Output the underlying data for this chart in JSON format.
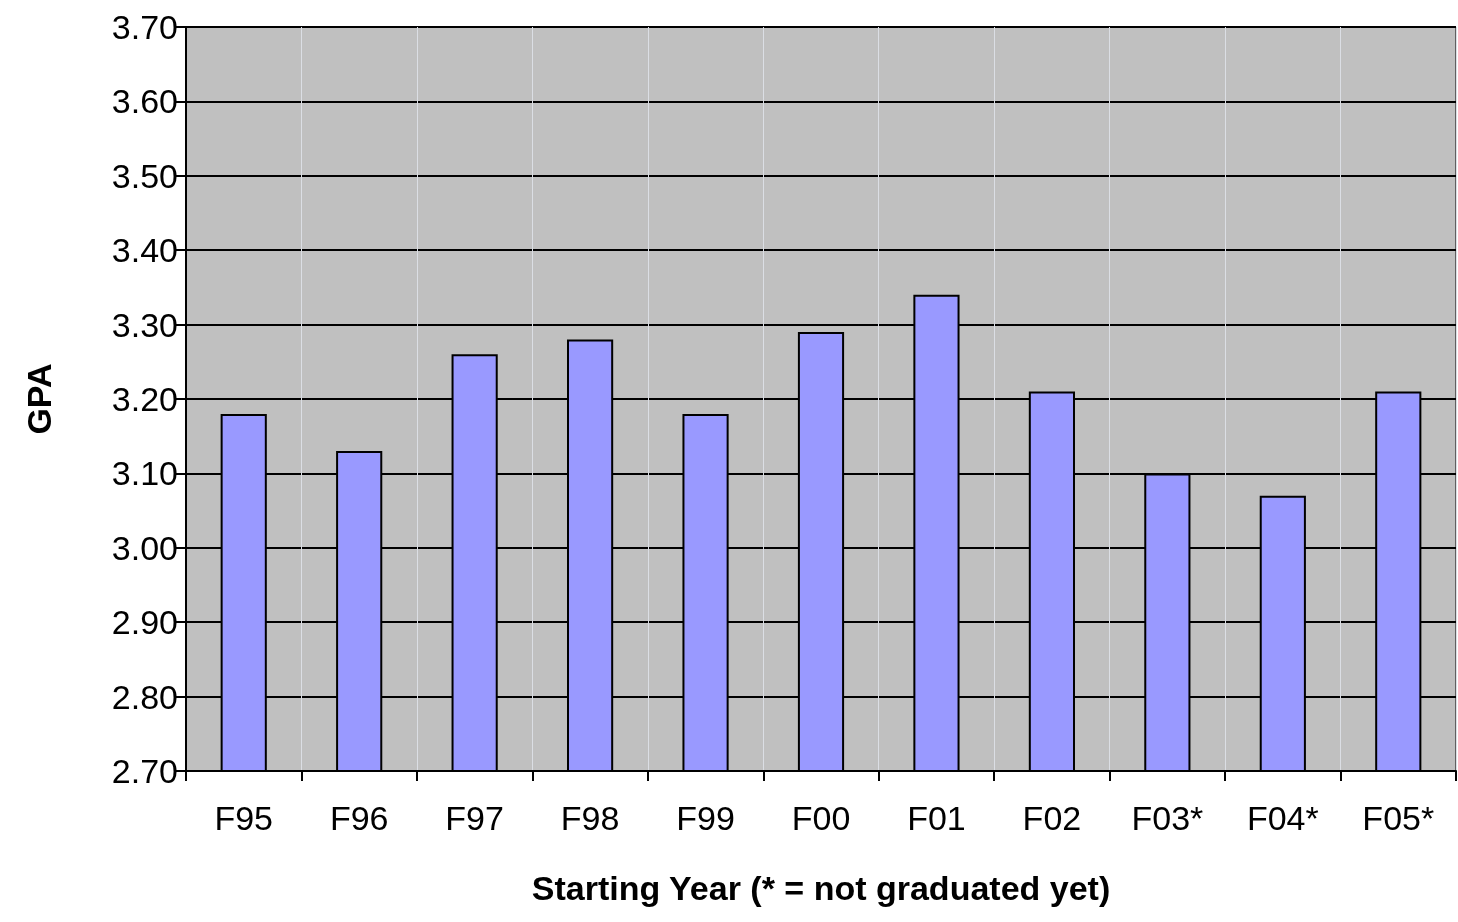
{
  "chart_data": {
    "type": "bar",
    "xlabel": "Starting Year (* = not graduated yet)",
    "ylabel": "GPA",
    "categories": [
      "F95",
      "F96",
      "F97",
      "F98",
      "F99",
      "F00",
      "F01",
      "F02",
      "F03*",
      "F04*",
      "F05*"
    ],
    "values": [
      3.18,
      3.13,
      3.26,
      3.28,
      3.18,
      3.29,
      3.34,
      3.21,
      3.1,
      3.07,
      3.21
    ],
    "color": "#9999ff",
    "ylim": [
      2.7,
      3.7
    ],
    "yticks": [
      {
        "value": 2.7,
        "label": "2.70"
      },
      {
        "value": 2.8,
        "label": "2.80"
      },
      {
        "value": 2.9,
        "label": "2.90"
      },
      {
        "value": 3.0,
        "label": "3.00"
      },
      {
        "value": 3.1,
        "label": "3.10"
      },
      {
        "value": 3.2,
        "label": "3.20"
      },
      {
        "value": 3.3,
        "label": "3.30"
      },
      {
        "value": 3.4,
        "label": "3.40"
      },
      {
        "value": 3.5,
        "label": "3.50"
      },
      {
        "value": 3.6,
        "label": "3.60"
      },
      {
        "value": 3.7,
        "label": "3.70"
      }
    ],
    "grid": true
  }
}
